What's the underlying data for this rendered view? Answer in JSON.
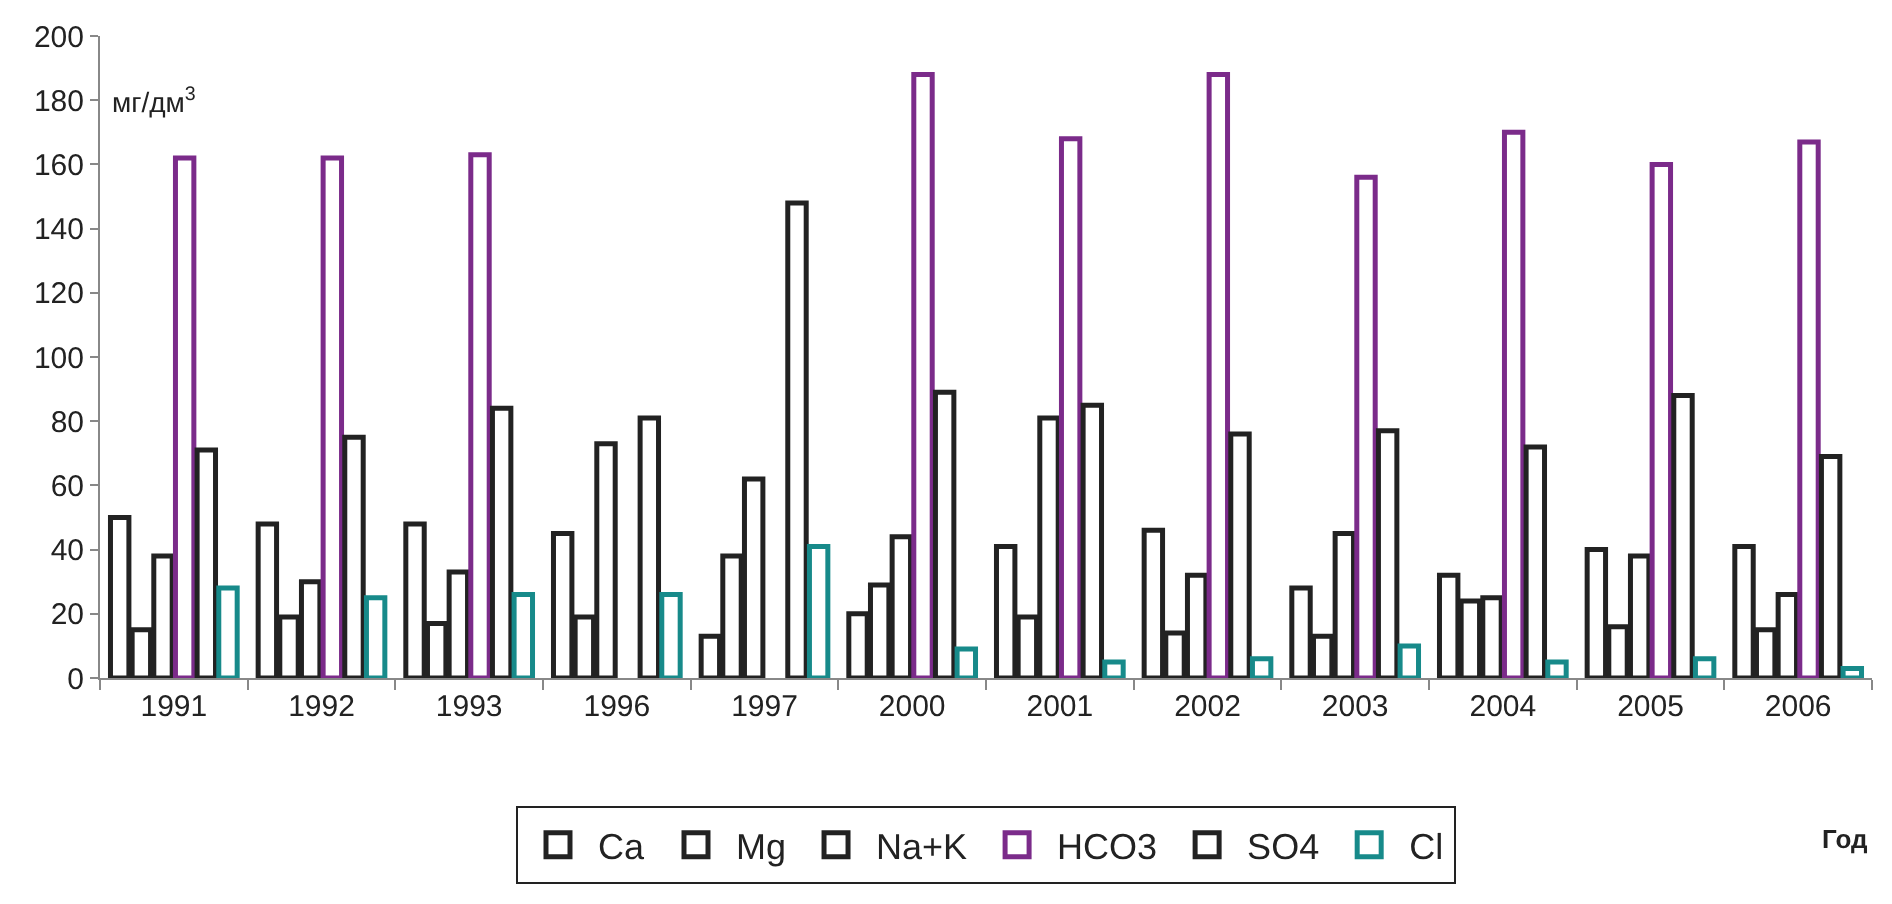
{
  "chart_data": {
    "type": "bar",
    "xlabel": "Год",
    "ylabel": "мг/дм$^{3}$",
    "categories": [
      "1991",
      "1992",
      "1993",
      "1996",
      "1997",
      "2000",
      "2001",
      "2002",
      "2003",
      "2004",
      "2005",
      "2006"
    ],
    "series": [
      {
        "name": "Ca",
        "color": "#222222",
        "values": [
          50,
          48,
          48,
          45,
          13,
          20,
          41,
          46,
          28,
          32,
          40,
          41
        ]
      },
      {
        "name": "Mg",
        "color": "#222222",
        "values": [
          15,
          19,
          17,
          19,
          38,
          29,
          19,
          14,
          13,
          24,
          16,
          15
        ]
      },
      {
        "name": "Na+K",
        "color": "#222222",
        "values": [
          38,
          30,
          33,
          73,
          62,
          44,
          81,
          32,
          45,
          25,
          38,
          26
        ]
      },
      {
        "name": "HCO3",
        "color": "#7b2b8a",
        "values": [
          162,
          162,
          163,
          null,
          null,
          188,
          168,
          188,
          156,
          170,
          160,
          167
        ]
      },
      {
        "name": "SO4",
        "color": "#222222",
        "values": [
          71,
          75,
          84,
          81,
          148,
          89,
          85,
          76,
          77,
          72,
          88,
          69
        ]
      },
      {
        "name": "Cl",
        "color": "#178a8a",
        "values": [
          28,
          25,
          26,
          26,
          41,
          9,
          5,
          6,
          10,
          5,
          6,
          3
        ]
      }
    ],
    "ylim": [
      0,
      200
    ],
    "yticks": [
      0,
      20,
      40,
      60,
      80,
      100,
      120,
      140,
      160,
      180,
      200
    ],
    "grid": false,
    "legend": "bottom"
  }
}
